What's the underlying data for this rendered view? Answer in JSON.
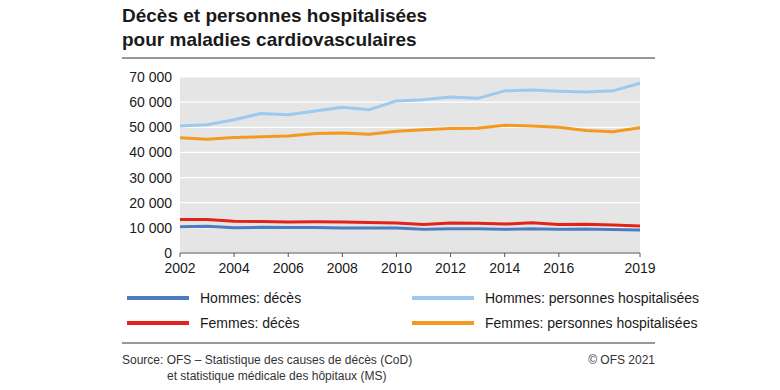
{
  "chart_data": {
    "type": "line",
    "title": "Décès et personnes hospitalisées pour maladies cardiovasculaires",
    "x": [
      2002,
      2003,
      2004,
      2005,
      2006,
      2007,
      2008,
      2009,
      2010,
      2011,
      2012,
      2013,
      2014,
      2015,
      2016,
      2017,
      2018,
      2019
    ],
    "series": [
      {
        "name": "Hommes: décès",
        "color": "#4a7dbf",
        "values": [
          10400,
          10600,
          10000,
          10200,
          10100,
          10100,
          9900,
          9900,
          9900,
          9400,
          9600,
          9600,
          9400,
          9600,
          9400,
          9500,
          9300,
          9100
        ]
      },
      {
        "name": "Hommes: personnes hospitalisées",
        "color": "#9dc9ee",
        "values": [
          50500,
          51000,
          53000,
          55500,
          55000,
          56500,
          58000,
          57000,
          60500,
          61000,
          62000,
          61500,
          64500,
          64800,
          64300,
          64000,
          64500,
          67500
        ]
      },
      {
        "name": "Femmes: décès",
        "color": "#e2231a",
        "values": [
          13300,
          13300,
          12600,
          12500,
          12300,
          12400,
          12300,
          12100,
          11900,
          11300,
          11900,
          11800,
          11500,
          12000,
          11300,
          11400,
          11100,
          10700
        ]
      },
      {
        "name": "Femmes: personnes hospitalisées",
        "color": "#f39a1e",
        "values": [
          45800,
          45200,
          45900,
          46200,
          46500,
          47500,
          47700,
          47200,
          48400,
          49000,
          49500,
          49600,
          50800,
          50500,
          50000,
          48700,
          48200,
          49800
        ]
      }
    ],
    "xlim": [
      2002,
      2019
    ],
    "xticks": [
      2002,
      2004,
      2006,
      2008,
      2010,
      2012,
      2014,
      2016,
      2019
    ],
    "ylim": [
      0,
      70000
    ],
    "yticks": [
      0,
      {
        "value": 10000,
        "label": "10 000"
      },
      {
        "value": 20000,
        "label": "20 000"
      },
      {
        "value": 30000,
        "label": "30 000"
      },
      {
        "value": 40000,
        "label": "40 000"
      },
      {
        "value": 50000,
        "label": "50 000"
      },
      {
        "value": 60000,
        "label": "60 000"
      },
      {
        "value": 70000,
        "label": "70 000"
      }
    ],
    "grid": true,
    "legend": "bottom",
    "source": [
      "Source: OFS – Statistique des causes de décès (CoD)",
      "et statistique médicale des hôpitaux (MS)"
    ],
    "copyright": "© OFS 2021"
  }
}
